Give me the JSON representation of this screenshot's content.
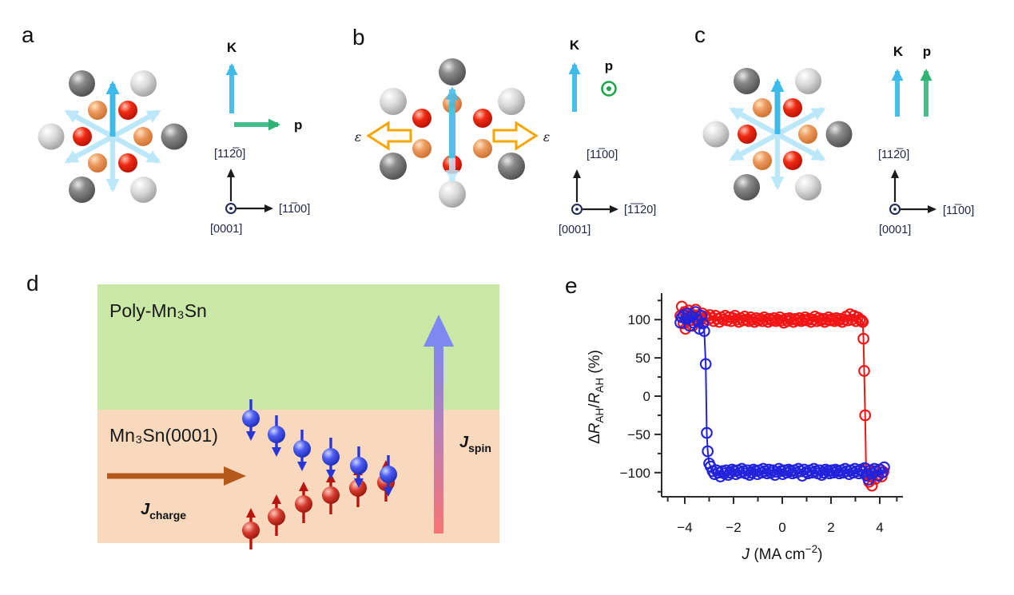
{
  "panels": {
    "a": {
      "label": "a",
      "k": "K",
      "p": "p",
      "axes": {
        "vertical": "[112̅0]",
        "horizontal": "[11̅00]",
        "out_of_plane": "[0001]"
      }
    },
    "b": {
      "label": "b",
      "k": "K",
      "p": "p",
      "strain": "ε",
      "axes": {
        "vertical": "[11̅00]",
        "horizontal": "[1̅1̅20]",
        "out_of_plane": "[0001]"
      }
    },
    "c": {
      "label": "c",
      "k": "K",
      "p": "p",
      "axes": {
        "vertical": "[112̅0]",
        "horizontal": "[11̅00]",
        "out_of_plane": "[0001]"
      }
    },
    "d": {
      "label": "d",
      "top_layer": "Poly-Mn₃Sn",
      "bottom_layer": "Mn₃Sn(0001)",
      "top_layer_color": "#c9e7a5",
      "bottom_layer_color": "#f8d9be",
      "j_charge": {
        "symbol": "J",
        "sub": "charge"
      },
      "j_spin": {
        "symbol": "J",
        "sub": "spin"
      }
    },
    "e": {
      "label": "e"
    }
  },
  "chart_data": {
    "type": "scatter",
    "title": "",
    "xlabel_parts": {
      "variable": "J",
      "unit_prefix": " (MA cm",
      "unit_exponent": "−2",
      "unit_suffix": ")"
    },
    "ylabel_parts": {
      "delta": "Δ",
      "r1": "R",
      "sub1": "AH",
      "slash": "/",
      "r2": "R",
      "sub2": "AH",
      "unit": " (%)"
    },
    "xlim": [
      -4.95,
      4.95
    ],
    "ylim": [
      -131,
      134
    ],
    "grid": false,
    "legend": null,
    "marker": "open-circle",
    "xticks": {
      "major": [
        -4,
        -2,
        0,
        2,
        4
      ],
      "labels": [
        "−4",
        "−2",
        "0",
        "2",
        "4"
      ],
      "minor": [
        -4.7,
        -3,
        -1,
        1,
        3,
        4.7
      ]
    },
    "yticks": {
      "major": [
        100,
        50,
        0,
        -50,
        -100
      ],
      "labels": [
        "100",
        "50",
        "0",
        "−50",
        "−100"
      ],
      "minor": [
        125,
        75,
        25,
        -25,
        -75,
        -125
      ]
    },
    "series": [
      {
        "name": "positive-sweep-red",
        "color": "#f21515",
        "points": [
          [
            -4.18,
            105
          ],
          [
            -4.12,
            117
          ],
          [
            -4.05,
            95
          ],
          [
            -4.0,
            110
          ],
          [
            -3.97,
            88
          ],
          [
            -3.9,
            103
          ],
          [
            -3.85,
            112
          ],
          [
            -3.8,
            99
          ],
          [
            -3.74,
            107
          ],
          [
            -3.68,
            92
          ],
          [
            -3.62,
            105
          ],
          [
            -3.55,
            113
          ],
          [
            -3.5,
            98
          ],
          [
            -3.42,
            106
          ],
          [
            -3.35,
            101
          ],
          [
            -3.28,
            108
          ],
          [
            -3.2,
            97
          ],
          [
            -3.12,
            104
          ],
          [
            -3.05,
            100
          ],
          [
            -2.97,
            106
          ],
          [
            -2.9,
            102
          ],
          [
            -2.82,
            98
          ],
          [
            -2.74,
            105
          ],
          [
            -2.66,
            101
          ],
          [
            -2.58,
            97
          ],
          [
            -2.5,
            103
          ],
          [
            -2.42,
            100
          ],
          [
            -2.34,
            105
          ],
          [
            -2.26,
            99
          ],
          [
            -2.18,
            103
          ],
          [
            -2.1,
            98
          ],
          [
            -2.02,
            102
          ],
          [
            -1.94,
            105
          ],
          [
            -1.86,
            100
          ],
          [
            -1.78,
            97
          ],
          [
            -1.7,
            102
          ],
          [
            -1.62,
            99
          ],
          [
            -1.54,
            104
          ],
          [
            -1.46,
            100
          ],
          [
            -1.38,
            98
          ],
          [
            -1.3,
            103
          ],
          [
            -1.22,
            100
          ],
          [
            -1.14,
            97
          ],
          [
            -1.06,
            102
          ],
          [
            -0.98,
            99
          ],
          [
            -0.9,
            101
          ],
          [
            -0.82,
            98
          ],
          [
            -0.74,
            103
          ],
          [
            -0.66,
            100
          ],
          [
            -0.58,
            97
          ],
          [
            -0.5,
            101
          ],
          [
            -0.42,
            99
          ],
          [
            -0.34,
            102
          ],
          [
            -0.26,
            98
          ],
          [
            -0.18,
            100
          ],
          [
            -0.1,
            103
          ],
          [
            -0.02,
            99
          ],
          [
            0.06,
            96
          ],
          [
            0.14,
            101
          ],
          [
            0.22,
            98
          ],
          [
            0.3,
            102
          ],
          [
            0.38,
            100
          ],
          [
            0.46,
            97
          ],
          [
            0.54,
            101
          ],
          [
            0.62,
            99
          ],
          [
            0.7,
            102
          ],
          [
            0.78,
            98
          ],
          [
            0.86,
            100
          ],
          [
            0.94,
            103
          ],
          [
            1.02,
            99
          ],
          [
            1.1,
            101
          ],
          [
            1.18,
            97
          ],
          [
            1.26,
            100
          ],
          [
            1.34,
            104
          ],
          [
            1.42,
            98
          ],
          [
            1.5,
            102
          ],
          [
            1.58,
            99
          ],
          [
            1.66,
            101
          ],
          [
            1.74,
            97
          ],
          [
            1.82,
            100
          ],
          [
            1.9,
            103
          ],
          [
            1.98,
            99
          ],
          [
            2.06,
            101
          ],
          [
            2.14,
            98
          ],
          [
            2.22,
            102
          ],
          [
            2.3,
            99
          ],
          [
            2.38,
            101
          ],
          [
            2.46,
            97
          ],
          [
            2.54,
            100
          ],
          [
            2.62,
            104
          ],
          [
            2.7,
            99
          ],
          [
            2.78,
            107
          ],
          [
            2.86,
            100
          ],
          [
            2.94,
            105
          ],
          [
            3.02,
            98
          ],
          [
            3.1,
            103
          ],
          [
            3.18,
            100
          ],
          [
            3.26,
            99
          ],
          [
            3.3,
            97
          ],
          [
            3.33,
            75
          ],
          [
            3.36,
            33
          ],
          [
            3.4,
            -25
          ],
          [
            3.44,
            -95
          ],
          [
            3.5,
            -101
          ],
          [
            3.56,
            -112
          ],
          [
            3.62,
            -105
          ],
          [
            3.68,
            -117
          ],
          [
            3.74,
            -98
          ],
          [
            3.82,
            -108
          ],
          [
            3.9,
            -103
          ],
          [
            3.98,
            -96
          ],
          [
            4.08,
            -105
          ],
          [
            4.15,
            -99
          ]
        ]
      },
      {
        "name": "negative-sweep-blue",
        "color": "#2323dc",
        "points": [
          [
            4.18,
            -93
          ],
          [
            4.1,
            -100
          ],
          [
            4.02,
            -96
          ],
          [
            3.94,
            -104
          ],
          [
            3.86,
            -98
          ],
          [
            3.78,
            -95
          ],
          [
            3.7,
            -101
          ],
          [
            3.62,
            -97
          ],
          [
            3.54,
            -109
          ],
          [
            3.46,
            -104
          ],
          [
            3.38,
            -94
          ],
          [
            3.3,
            -99
          ],
          [
            3.22,
            -96
          ],
          [
            3.14,
            -101
          ],
          [
            3.06,
            -98
          ],
          [
            2.98,
            -95
          ],
          [
            2.9,
            -100
          ],
          [
            2.82,
            -97
          ],
          [
            2.74,
            -102
          ],
          [
            2.66,
            -98
          ],
          [
            2.58,
            -95
          ],
          [
            2.5,
            -100
          ],
          [
            2.42,
            -97
          ],
          [
            2.34,
            -101
          ],
          [
            2.26,
            -98
          ],
          [
            2.18,
            -96
          ],
          [
            2.1,
            -100
          ],
          [
            2.02,
            -97
          ],
          [
            1.94,
            -101
          ],
          [
            1.86,
            -98
          ],
          [
            1.78,
            -96
          ],
          [
            1.7,
            -100
          ],
          [
            1.62,
            -103
          ],
          [
            1.54,
            -97
          ],
          [
            1.46,
            -101
          ],
          [
            1.38,
            -98
          ],
          [
            1.3,
            -95
          ],
          [
            1.22,
            -100
          ],
          [
            1.14,
            -97
          ],
          [
            1.06,
            -101
          ],
          [
            0.98,
            -99
          ],
          [
            0.9,
            -96
          ],
          [
            0.82,
            -104
          ],
          [
            0.74,
            -98
          ],
          [
            0.66,
            -95
          ],
          [
            0.58,
            -100
          ],
          [
            0.5,
            -97
          ],
          [
            0.42,
            -101
          ],
          [
            0.34,
            -98
          ],
          [
            0.26,
            -96
          ],
          [
            0.18,
            -100
          ],
          [
            0.1,
            -97
          ],
          [
            0.02,
            -102
          ],
          [
            -0.06,
            -98
          ],
          [
            -0.14,
            -95
          ],
          [
            -0.22,
            -99
          ],
          [
            -0.3,
            -103
          ],
          [
            -0.38,
            -97
          ],
          [
            -0.46,
            -100
          ],
          [
            -0.54,
            -96
          ],
          [
            -0.62,
            -101
          ],
          [
            -0.7,
            -98
          ],
          [
            -0.78,
            -95
          ],
          [
            -0.86,
            -100
          ],
          [
            -0.94,
            -97
          ],
          [
            -1.02,
            -102
          ],
          [
            -1.1,
            -98
          ],
          [
            -1.18,
            -96
          ],
          [
            -1.26,
            -100
          ],
          [
            -1.34,
            -103
          ],
          [
            -1.42,
            -97
          ],
          [
            -1.5,
            -101
          ],
          [
            -1.58,
            -98
          ],
          [
            -1.66,
            -95
          ],
          [
            -1.74,
            -100
          ],
          [
            -1.82,
            -97
          ],
          [
            -1.9,
            -102
          ],
          [
            -1.98,
            -98
          ],
          [
            -2.06,
            -96
          ],
          [
            -2.14,
            -100
          ],
          [
            -2.22,
            -103
          ],
          [
            -2.3,
            -97
          ],
          [
            -2.38,
            -101
          ],
          [
            -2.46,
            -98
          ],
          [
            -2.54,
            -105
          ],
          [
            -2.62,
            -100
          ],
          [
            -2.7,
            -97
          ],
          [
            -2.78,
            -102
          ],
          [
            -2.86,
            -98
          ],
          [
            -2.94,
            -92
          ],
          [
            -3.0,
            -88
          ],
          [
            -3.06,
            -72
          ],
          [
            -3.1,
            -48
          ],
          [
            -3.14,
            42
          ],
          [
            -3.2,
            85
          ],
          [
            -3.26,
            95
          ],
          [
            -3.32,
            105
          ],
          [
            -3.4,
            88
          ],
          [
            -3.48,
            100
          ],
          [
            -3.56,
            110
          ],
          [
            -3.64,
            96
          ],
          [
            -3.72,
            104
          ],
          [
            -3.8,
            92
          ],
          [
            -3.88,
            108
          ],
          [
            -3.96,
            101
          ],
          [
            -4.05,
            106
          ],
          [
            -4.12,
            103
          ],
          [
            -4.18,
            96
          ]
        ]
      }
    ]
  }
}
